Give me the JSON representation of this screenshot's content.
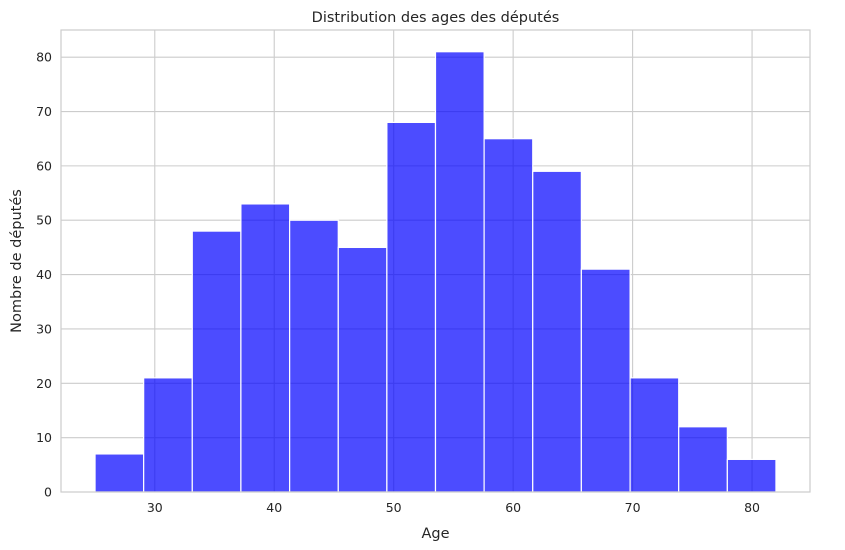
{
  "chart_data": {
    "type": "bar",
    "title": "Distribution des ages des députés",
    "xlabel": "Age",
    "ylabel": "Nombre de députés",
    "bins": [
      {
        "x0": 25.0,
        "x1": 29.07,
        "count": 7
      },
      {
        "x0": 29.07,
        "x1": 33.14,
        "count": 21
      },
      {
        "x0": 33.14,
        "x1": 37.21,
        "count": 48
      },
      {
        "x0": 37.21,
        "x1": 41.29,
        "count": 53
      },
      {
        "x0": 41.29,
        "x1": 45.36,
        "count": 50
      },
      {
        "x0": 45.36,
        "x1": 49.43,
        "count": 45
      },
      {
        "x0": 49.43,
        "x1": 53.5,
        "count": 68
      },
      {
        "x0": 53.5,
        "x1": 57.57,
        "count": 81
      },
      {
        "x0": 57.57,
        "x1": 61.64,
        "count": 65
      },
      {
        "x0": 61.64,
        "x1": 65.71,
        "count": 59
      },
      {
        "x0": 65.71,
        "x1": 69.79,
        "count": 41
      },
      {
        "x0": 69.79,
        "x1": 73.86,
        "count": 21
      },
      {
        "x0": 73.86,
        "x1": 77.93,
        "count": 12
      },
      {
        "x0": 77.93,
        "x1": 82.0,
        "count": 6
      }
    ],
    "xlim": [
      22.15,
      84.85
    ],
    "ylim": [
      0,
      85
    ],
    "xticks": [
      30,
      40,
      50,
      60,
      70,
      80
    ],
    "yticks": [
      0,
      10,
      20,
      30,
      40,
      50,
      60,
      70,
      80
    ],
    "grid": true,
    "bar_color": "#0000ff"
  }
}
